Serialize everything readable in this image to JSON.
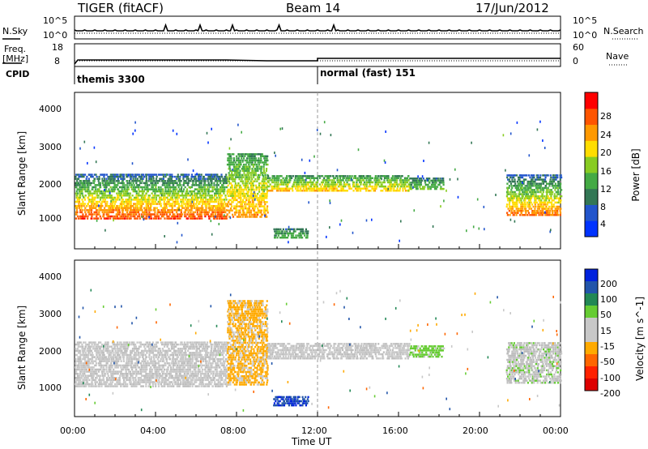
{
  "header": {
    "radar": "TIGER (fitACF)",
    "beam": "Beam 14",
    "date": "17/Jun/2012"
  },
  "top_panels": {
    "nsky_label": "N.Sky",
    "nsearch_label": "N.Search",
    "nsky_ticks": [
      "10^5",
      "10^0"
    ],
    "nsearch_ticks": [
      "10^5",
      "10^0"
    ],
    "freq_label_1": "Freq.",
    "freq_label_2": "[MHz]",
    "freq_ticks": [
      "18",
      "8"
    ],
    "nave_label": "Nave",
    "nave_ticks": [
      "60",
      "0"
    ],
    "cpid_label": "CPID",
    "cpid_segments": [
      {
        "label": "themis 3300",
        "start_hour": 0
      },
      {
        "label": "normal (fast) 151",
        "start_hour": 12
      }
    ]
  },
  "colors": {
    "power_scale": [
      "#0033ff",
      "#2255cc",
      "#337755",
      "#44aa44",
      "#88cc22",
      "#ffdd00",
      "#ff9900",
      "#ff5500",
      "#ff0000"
    ],
    "velocity_scale": [
      "#0022dd",
      "#2255aa",
      "#228855",
      "#66cc33",
      "#c8c8c8",
      "#c8c8c8",
      "#ffaa00",
      "#ff6600",
      "#ff2200",
      "#dd0000"
    ],
    "ground_scatter": "#bdbdbd"
  },
  "chart_data": [
    {
      "type": "heatmap",
      "panel": "power",
      "ylabel": "Slant Range [km]",
      "y_ticks": [
        "1000",
        "2000",
        "3000",
        "4000"
      ],
      "ylim": [
        0,
        4500
      ],
      "colorbar": {
        "label": "Power [dB]",
        "ticks": [
          "4",
          "8",
          "12",
          "16",
          "20",
          "24",
          "28"
        ],
        "range": [
          0,
          30
        ]
      },
      "scatter_bands": [
        {
          "hour_start": 0.0,
          "hour_end": 7.5,
          "range_low": 900,
          "range_high": 2200,
          "power_low_range": 26,
          "power_high_range": 6
        },
        {
          "hour_start": 7.5,
          "hour_end": 9.5,
          "range_low": 950,
          "range_high": 2800,
          "power_low_range": 22,
          "power_high_range": 10
        },
        {
          "hour_start": 9.5,
          "hour_end": 16.5,
          "range_low": 1700,
          "range_high": 2200,
          "power_low_range": 20,
          "power_high_range": 10
        },
        {
          "hour_start": 9.8,
          "hour_end": 11.5,
          "range_low": 350,
          "range_high": 650,
          "power_low_range": 12,
          "power_high_range": 8
        },
        {
          "hour_start": 16.5,
          "hour_end": 18.2,
          "range_low": 1750,
          "range_high": 2100,
          "power_low_range": 14,
          "power_high_range": 8
        },
        {
          "hour_start": 21.3,
          "hour_end": 24.0,
          "range_low": 1000,
          "range_high": 2200,
          "power_low_range": 24,
          "power_high_range": 6
        }
      ]
    },
    {
      "type": "heatmap",
      "panel": "velocity",
      "ylabel": "Slant Range [km]",
      "y_ticks": [
        "1000",
        "2000",
        "3000",
        "4000"
      ],
      "ylim": [
        0,
        4500
      ],
      "colorbar": {
        "label": "Velocity [m s^-1]",
        "ticks": [
          "200",
          "100",
          "50",
          "15",
          "-15",
          "-50",
          "-100",
          "-200"
        ],
        "range": [
          -250,
          250
        ]
      },
      "scatter_bands": [
        {
          "hour_start": 0.0,
          "hour_end": 7.5,
          "range_low": 900,
          "range_high": 2200,
          "velocity": -15
        },
        {
          "hour_start": 7.5,
          "hour_end": 9.5,
          "range_low": 950,
          "range_high": 3400,
          "velocity": -60
        },
        {
          "hour_start": 9.5,
          "hour_end": 16.5,
          "range_low": 1700,
          "range_high": 2200,
          "velocity": -20
        },
        {
          "hour_start": 9.8,
          "hour_end": 11.5,
          "range_low": 350,
          "range_high": 650,
          "velocity": 200
        },
        {
          "hour_start": 16.5,
          "hour_end": 18.2,
          "range_low": 1750,
          "range_high": 2100,
          "velocity": 30
        },
        {
          "hour_start": 21.3,
          "hour_end": 24.0,
          "range_low": 1000,
          "range_high": 2200,
          "velocity": 0
        }
      ]
    }
  ],
  "x_axis": {
    "label": "Time UT",
    "ticks": [
      "00:00",
      "04:00",
      "08:00",
      "12:00",
      "16:00",
      "20:00",
      "00:00"
    ]
  }
}
